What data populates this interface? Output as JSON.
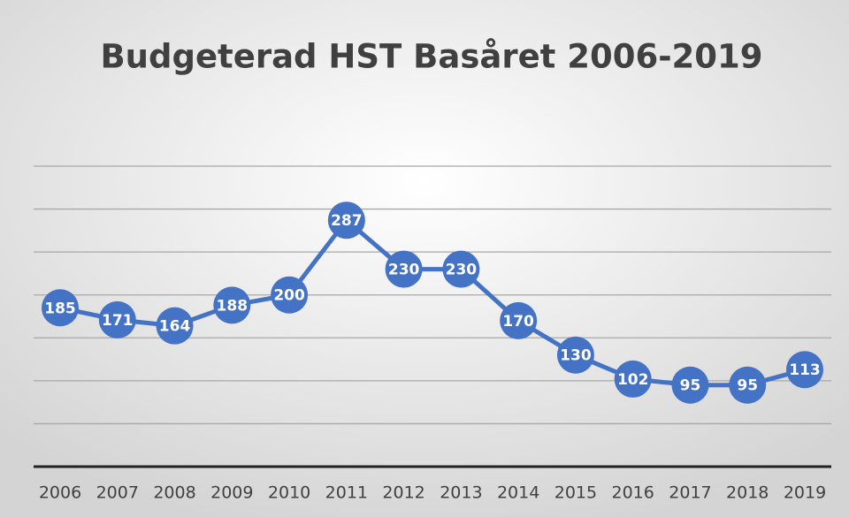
{
  "chart_data": {
    "type": "line",
    "title": "Budgeterad HST Basåret 2006-2019",
    "categories": [
      "2006",
      "2007",
      "2008",
      "2009",
      "2010",
      "2011",
      "2012",
      "2013",
      "2014",
      "2015",
      "2016",
      "2017",
      "2018",
      "2019"
    ],
    "series": [
      {
        "name": "HST",
        "color": "#4472c4",
        "values": [
          185,
          171,
          164,
          188,
          200,
          287,
          230,
          230,
          170,
          130,
          102,
          95,
          95,
          113
        ]
      }
    ],
    "ylim": [
      0,
      350
    ],
    "yticks": [
      0,
      50,
      100,
      150,
      200,
      250,
      300,
      350
    ],
    "grid": true
  }
}
